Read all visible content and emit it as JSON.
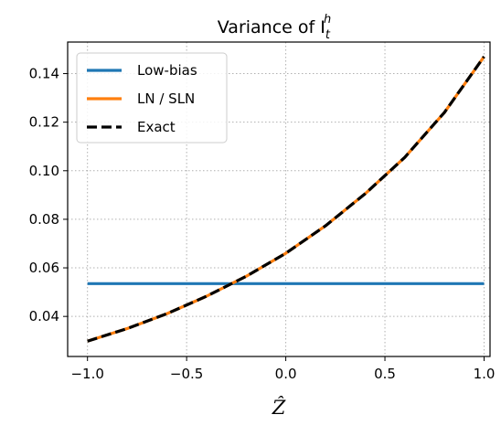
{
  "chart_data": {
    "type": "line",
    "title": "Variance of I",
    "title_sub": "t",
    "title_sup": "h",
    "xlabel": "Ẑ",
    "ylabel": "",
    "xlim": [
      -1.1,
      1.03
    ],
    "ylim": [
      0.0235,
      0.153
    ],
    "xticks": [
      -1.0,
      -0.5,
      0.0,
      0.5,
      1.0
    ],
    "xtick_labels": [
      "−1.0",
      "−0.5",
      "0.0",
      "0.5",
      "1.0"
    ],
    "yticks": [
      0.04,
      0.06,
      0.08,
      0.1,
      0.12,
      0.14
    ],
    "ytick_labels": [
      "0.04",
      "0.06",
      "0.08",
      "0.10",
      "0.12",
      "0.14"
    ],
    "grid": true,
    "legend_position": "upper-left",
    "x": [
      -1.0,
      -0.8,
      -0.6,
      -0.4,
      -0.2,
      0.0,
      0.2,
      0.4,
      0.6,
      0.8,
      1.0
    ],
    "series": [
      {
        "name": "Low-bias",
        "color": "#1f77b4",
        "style": "solid",
        "values": [
          0.0535,
          0.0535,
          0.0535,
          0.0535,
          0.0535,
          0.0535,
          0.0535,
          0.0535,
          0.0535,
          0.0535,
          0.0535
        ]
      },
      {
        "name": "LN / SLN",
        "color": "#ff7f0e",
        "style": "solid",
        "values": [
          0.0298,
          0.035,
          0.0411,
          0.0483,
          0.0565,
          0.066,
          0.0773,
          0.0905,
          0.1055,
          0.124,
          0.147
        ]
      },
      {
        "name": "Exact",
        "color": "#000000",
        "style": "dashed",
        "values": [
          0.0298,
          0.035,
          0.0411,
          0.0483,
          0.0565,
          0.066,
          0.0773,
          0.0905,
          0.1055,
          0.124,
          0.147
        ]
      }
    ]
  }
}
